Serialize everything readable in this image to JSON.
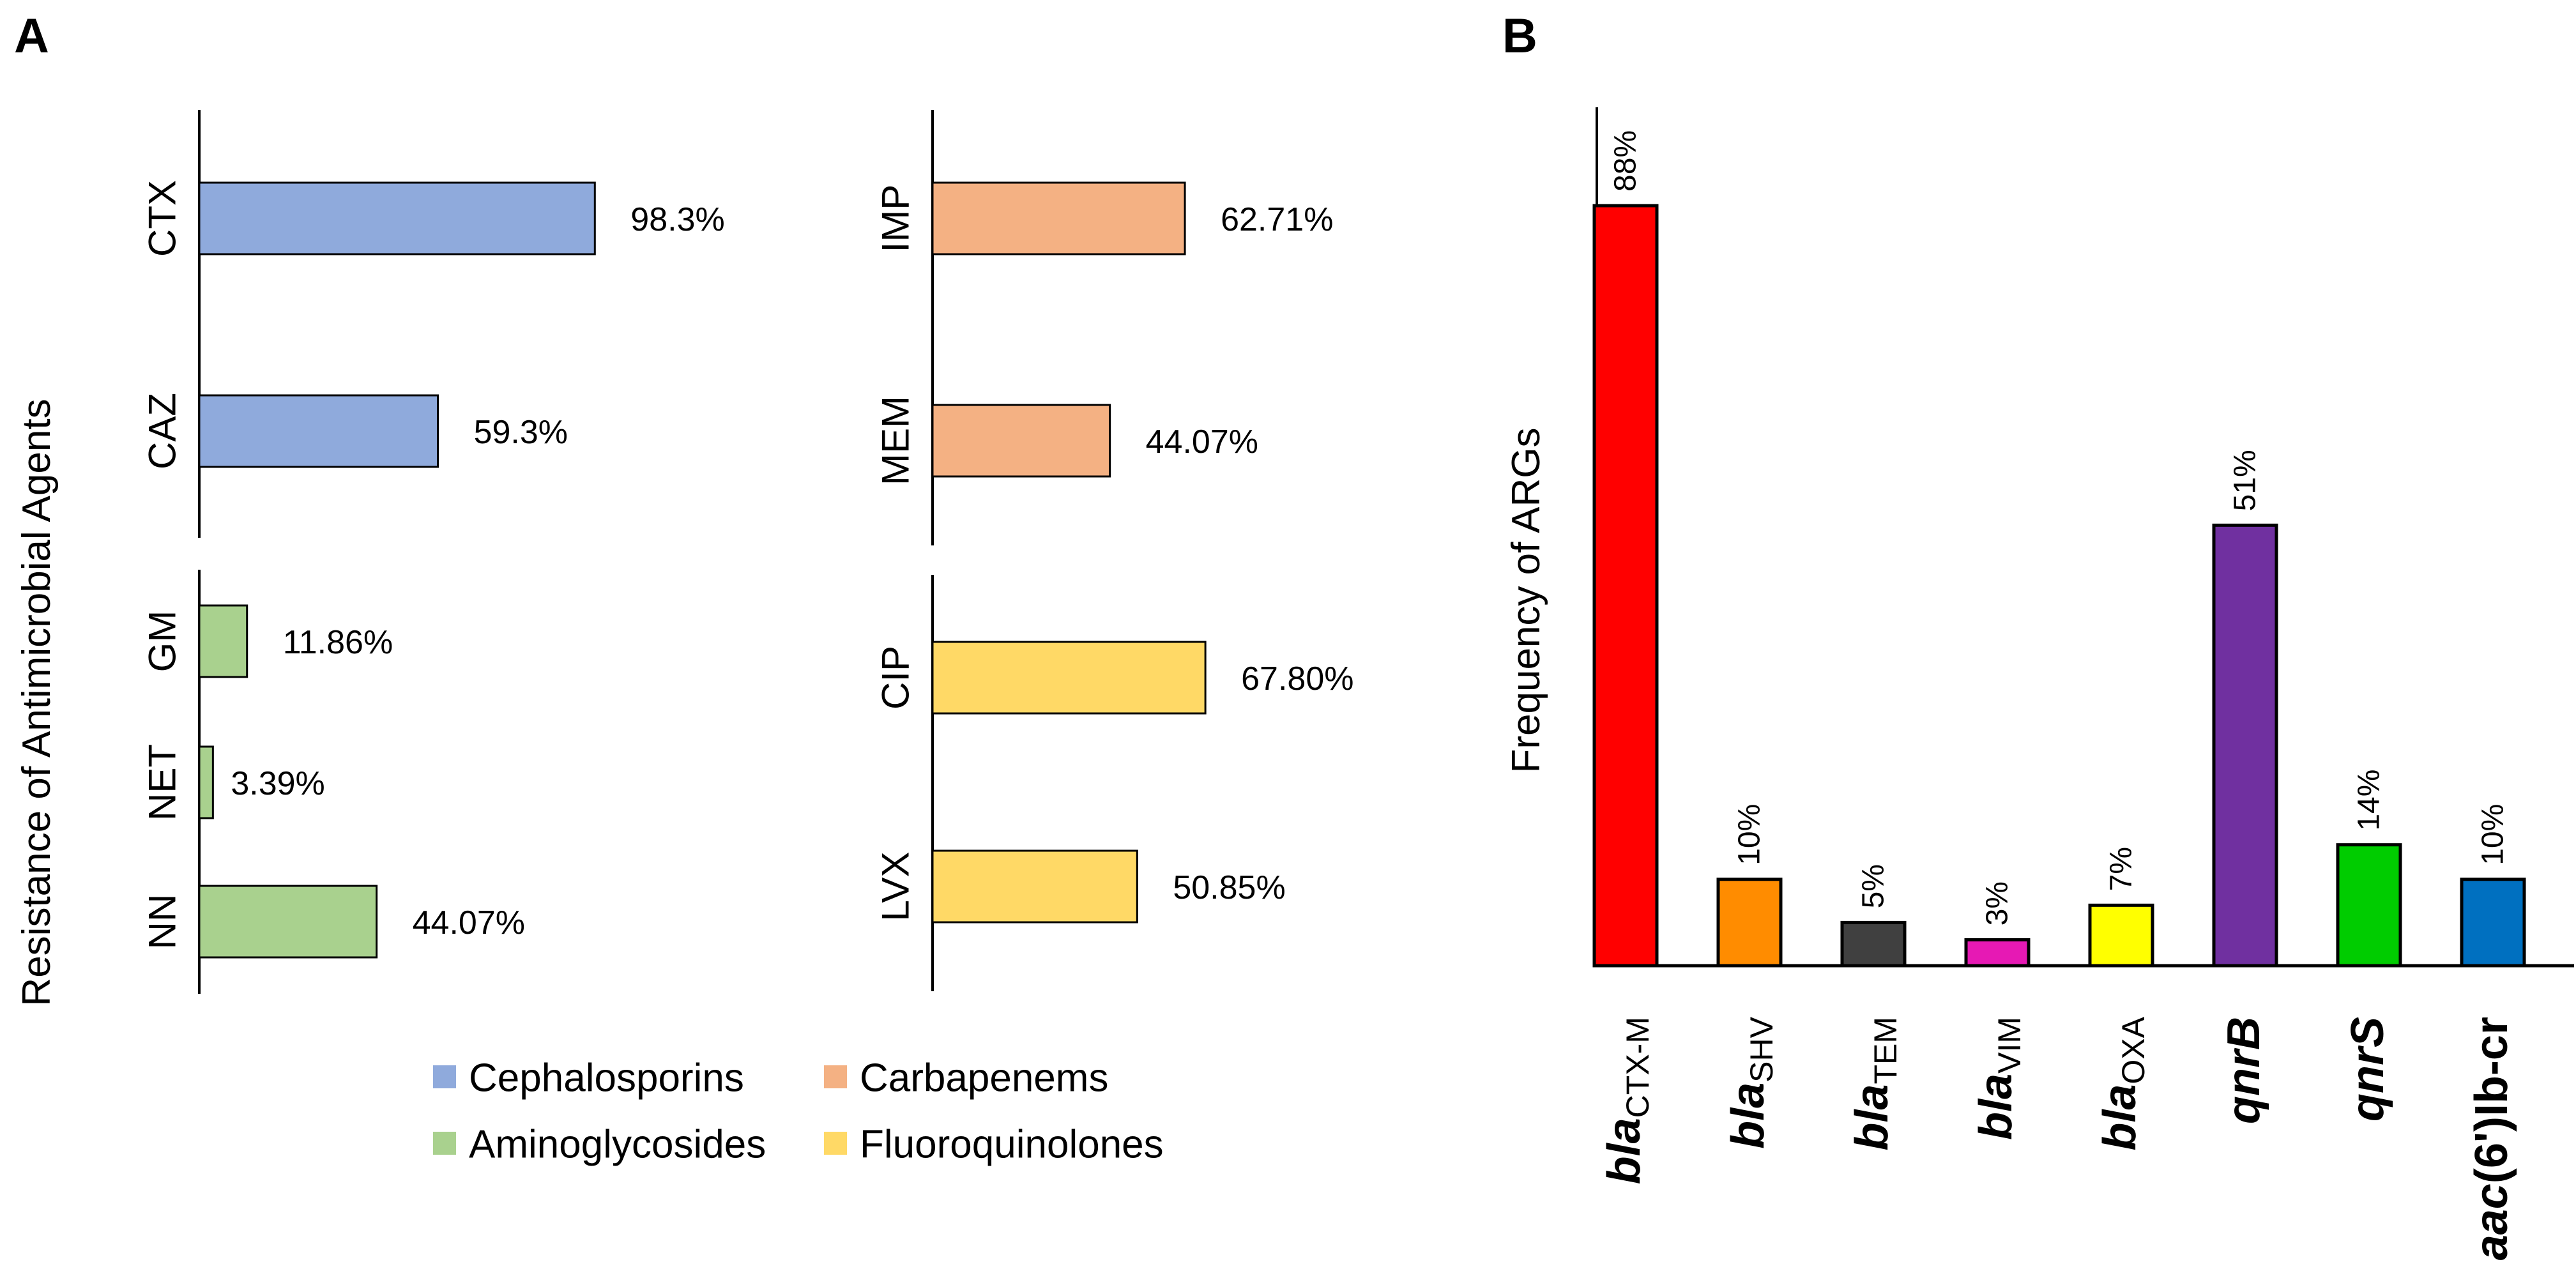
{
  "panel_labels": {
    "a": "A",
    "b": "B"
  },
  "chart_data": [
    {
      "panel": "A",
      "type": "bar",
      "orientation": "horizontal",
      "ylabel": "Resistance of Antimicrobial Agents",
      "xlim": [
        0,
        100
      ],
      "groups": [
        {
          "name": "Cephalosporins",
          "color": "#8faadc",
          "categories": [
            "CTX",
            "CAZ"
          ],
          "values": [
            98.3,
            59.3
          ],
          "labels": [
            "98.3%",
            "59.3%"
          ]
        },
        {
          "name": "Carbapenems",
          "color": "#f4b183",
          "categories": [
            "IMP",
            "MEM"
          ],
          "values": [
            62.71,
            44.07
          ],
          "labels": [
            "62.71%",
            "44.07%"
          ]
        },
        {
          "name": "Aminoglycosides",
          "color": "#a9d18e",
          "categories": [
            "GM",
            "NET",
            "NN"
          ],
          "values": [
            11.86,
            3.39,
            44.07
          ],
          "labels": [
            "11.86%",
            "3.39%",
            "44.07%"
          ]
        },
        {
          "name": "Fluoroquinolones",
          "color": "#ffd966",
          "categories": [
            "CIP",
            "LVX"
          ],
          "values": [
            67.8,
            50.85
          ],
          "labels": [
            "67.80%",
            "50.85%"
          ]
        }
      ],
      "legend": [
        "Cephalosporins",
        "Carbapenems",
        "Aminoglycosides",
        "Fluoroquinolones"
      ],
      "legend_position": "bottom"
    },
    {
      "panel": "B",
      "type": "bar",
      "ylabel": "Frequency of ARGs",
      "ylim": [
        0,
        100
      ],
      "categories": [
        {
          "main": "bla",
          "sub": "CTX-M"
        },
        {
          "main": "bla",
          "sub": "SHV"
        },
        {
          "main": "bla",
          "sub": "TEM"
        },
        {
          "main": "bla",
          "sub": "VIM"
        },
        {
          "main": "bla",
          "sub": "OXA"
        },
        {
          "main": "qnr",
          "suffix": "B"
        },
        {
          "main": "qnr",
          "suffix": "S"
        },
        {
          "main": "aac",
          "suffix": "(6')Ib-cr"
        }
      ],
      "values": [
        88,
        10,
        5,
        3,
        7,
        51,
        14,
        10
      ],
      "labels": [
        "88%",
        "10%",
        "5%",
        "3%",
        "7%",
        "51%",
        "14%",
        "10%"
      ],
      "colors": [
        "#ff0000",
        "#ff8c00",
        "#404040",
        "#e619b4",
        "#ffff00",
        "#7030a0",
        "#00cc00",
        "#0070c0"
      ]
    }
  ]
}
